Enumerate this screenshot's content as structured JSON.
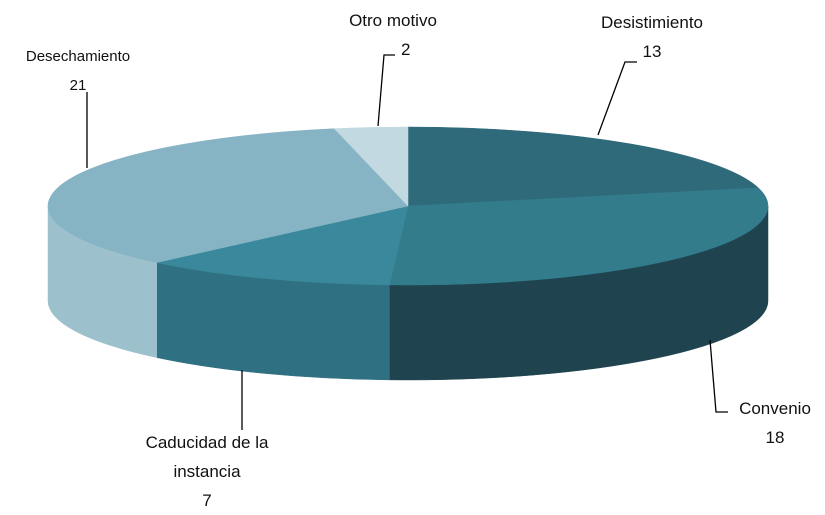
{
  "chart_data": {
    "type": "pie3d",
    "categories": [
      "Desistimiento",
      "Convenio",
      "Caducidad de la instancia",
      "Desechamiento",
      "Otro motivo"
    ],
    "values": [
      13,
      18,
      7,
      21,
      2
    ],
    "colors": [
      "#2f6a7a",
      "#327c8c",
      "#3a889b",
      "#86b4c4",
      "#c2d9e1"
    ],
    "side_colors": [
      "#23505c",
      "#1f4450",
      "#2f7182",
      "#9cc1cd",
      "#a9c8d2"
    ]
  }
}
